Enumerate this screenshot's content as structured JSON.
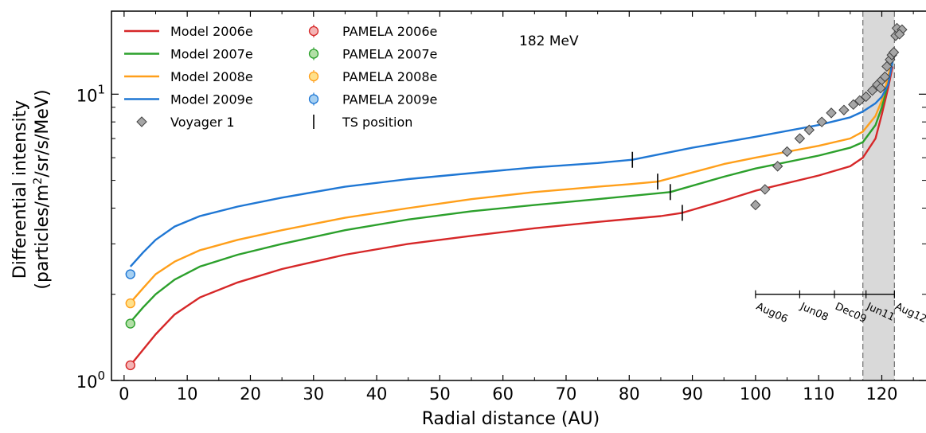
{
  "chart_data": {
    "type": "line",
    "xlabel": "Radial distance (AU)",
    "ylabel_line1": "Differential intensity",
    "ylabel_line2_prefix": "(particles/m",
    "ylabel_line2_sup": "2",
    "ylabel_line2_suffix": "/sr/s/MeV)",
    "annotation": "182 MeV",
    "xlim": [
      -2,
      127
    ],
    "ylim": [
      1.0,
      19.5
    ],
    "yscale": "log",
    "x_ticks": [
      0,
      10,
      20,
      30,
      40,
      50,
      60,
      70,
      80,
      90,
      100,
      110,
      120
    ],
    "x_tick_labels": [
      "0",
      "10",
      "20",
      "30",
      "40",
      "50",
      "60",
      "70",
      "80",
      "90",
      "100",
      "110",
      "120"
    ],
    "y_major_ticks": [
      1,
      10
    ],
    "y_tick_labels": [
      {
        "base": "10",
        "exp": "0"
      },
      {
        "base": "10",
        "exp": "1"
      }
    ],
    "shaded_region": [
      117,
      122
    ],
    "series": [
      {
        "name": "Model 2006e",
        "color": "#d62728",
        "x": [
          1,
          3,
          5,
          8,
          12,
          18,
          25,
          35,
          45,
          55,
          65,
          75,
          85,
          88.4,
          95,
          100,
          110,
          115,
          117,
          119,
          120,
          121,
          121.7
        ],
        "y": [
          1.13,
          1.28,
          1.45,
          1.7,
          1.95,
          2.2,
          2.45,
          2.75,
          3.0,
          3.2,
          3.4,
          3.58,
          3.75,
          3.85,
          4.25,
          4.6,
          5.2,
          5.6,
          6.0,
          7.0,
          8.5,
          10.5,
          12.5
        ]
      },
      {
        "name": "Model 2007e",
        "color": "#2ca02c",
        "x": [
          1,
          3,
          5,
          8,
          12,
          18,
          25,
          35,
          45,
          55,
          65,
          75,
          82,
          86.5,
          95,
          100,
          110,
          115,
          117,
          119,
          120,
          121,
          121.7
        ],
        "y": [
          1.6,
          1.8,
          2.0,
          2.25,
          2.5,
          2.75,
          3.0,
          3.35,
          3.65,
          3.9,
          4.1,
          4.3,
          4.45,
          4.55,
          5.15,
          5.5,
          6.1,
          6.5,
          6.8,
          7.8,
          9.0,
          11.0,
          13.0
        ]
      },
      {
        "name": "Model 2008e",
        "color": "#ff9f1a",
        "x": [
          1,
          3,
          5,
          8,
          12,
          18,
          25,
          35,
          45,
          55,
          65,
          75,
          80,
          84.5,
          95,
          100,
          110,
          115,
          117,
          119,
          120,
          121,
          121.7
        ],
        "y": [
          1.87,
          2.1,
          2.35,
          2.6,
          2.85,
          3.1,
          3.35,
          3.7,
          4.0,
          4.3,
          4.55,
          4.75,
          4.85,
          4.95,
          5.7,
          6.0,
          6.6,
          7.0,
          7.4,
          8.4,
          9.5,
          11.5,
          13.5
        ]
      },
      {
        "name": "Model 2009e",
        "color": "#1f77d4",
        "x": [
          1,
          3,
          5,
          8,
          12,
          18,
          25,
          35,
          45,
          55,
          65,
          75,
          80.5,
          90,
          100,
          110,
          115,
          117,
          119,
          120,
          121,
          121.7
        ],
        "y": [
          2.5,
          2.8,
          3.1,
          3.45,
          3.75,
          4.05,
          4.35,
          4.75,
          5.05,
          5.3,
          5.55,
          5.75,
          5.9,
          6.5,
          7.1,
          7.8,
          8.3,
          8.7,
          9.3,
          9.8,
          10.8,
          13.0
        ]
      }
    ],
    "pamela_points": [
      {
        "name": "PAMELA 2006e",
        "x": 1,
        "y": 1.13,
        "face": "#f4b4b4",
        "edge": "#d62728"
      },
      {
        "name": "PAMELA 2007e",
        "x": 1,
        "y": 1.58,
        "face": "#b2dfa6",
        "edge": "#2ca02c"
      },
      {
        "name": "PAMELA 2008e",
        "x": 1,
        "y": 1.86,
        "face": "#ffe08a",
        "edge": "#ff9f1a"
      },
      {
        "name": "PAMELA 2009e",
        "x": 1,
        "y": 2.35,
        "face": "#a6d0f2",
        "edge": "#1f77d4"
      }
    ],
    "voyager_name": "Voyager 1",
    "voyager_points": [
      {
        "x": 100,
        "y": 4.1
      },
      {
        "x": 101.5,
        "y": 4.65
      },
      {
        "x": 103.5,
        "y": 5.6
      },
      {
        "x": 105,
        "y": 6.3
      },
      {
        "x": 107,
        "y": 7.0
      },
      {
        "x": 108.5,
        "y": 7.5
      },
      {
        "x": 110.5,
        "y": 8.0
      },
      {
        "x": 112,
        "y": 8.6
      },
      {
        "x": 114,
        "y": 8.8
      },
      {
        "x": 115.5,
        "y": 9.2
      },
      {
        "x": 116.5,
        "y": 9.5
      },
      {
        "x": 117.5,
        "y": 9.8
      },
      {
        "x": 118.5,
        "y": 10.3
      },
      {
        "x": 119.3,
        "y": 10.8
      },
      {
        "x": 120,
        "y": 11.2
      },
      {
        "x": 119.8,
        "y": 10.5
      },
      {
        "x": 120.5,
        "y": 11.5
      },
      {
        "x": 120.8,
        "y": 12.5
      },
      {
        "x": 121.3,
        "y": 13.2
      },
      {
        "x": 121.6,
        "y": 13.7
      },
      {
        "x": 121.9,
        "y": 14.0
      },
      {
        "x": 122.2,
        "y": 16.0
      },
      {
        "x": 122.4,
        "y": 17.0
      },
      {
        "x": 123.2,
        "y": 16.8
      },
      {
        "x": 122.8,
        "y": 16.2
      }
    ],
    "ts_name": "TS position",
    "ts_positions": [
      {
        "x": 88.4,
        "y": 3.85
      },
      {
        "x": 86.5,
        "y": 4.55
      },
      {
        "x": 84.5,
        "y": 4.95
      },
      {
        "x": 80.5,
        "y": 5.9
      }
    ],
    "timeline": {
      "y": 2.0,
      "x_start": 100,
      "x_end": 122,
      "ticks": [
        {
          "x": 100,
          "label": "Aug06"
        },
        {
          "x": 107,
          "label": "Jun08"
        },
        {
          "x": 112.5,
          "label": "Dec09"
        },
        {
          "x": 117.5,
          "label": "Jun11"
        },
        {
          "x": 122,
          "label": "Aug12"
        }
      ]
    },
    "legend": {
      "placement": "top-left",
      "col1": [
        {
          "label": "Model 2006e",
          "kind": "line",
          "color": "#d62728"
        },
        {
          "label": "Model 2007e",
          "kind": "line",
          "color": "#2ca02c"
        },
        {
          "label": "Model 2008e",
          "kind": "line",
          "color": "#ff9f1a"
        },
        {
          "label": "Model 2009e",
          "kind": "line",
          "color": "#1f77d4"
        },
        {
          "label": "Voyager 1",
          "kind": "diamond",
          "color": "#9a9a9a"
        }
      ],
      "col2": [
        {
          "label": "PAMELA 2006e",
          "kind": "circle",
          "color": "#f4b4b4",
          "edge": "#d62728"
        },
        {
          "label": "PAMELA 2007e",
          "kind": "circle",
          "color": "#b2dfa6",
          "edge": "#2ca02c"
        },
        {
          "label": "PAMELA 2008e",
          "kind": "circle",
          "color": "#ffe08a",
          "edge": "#ff9f1a"
        },
        {
          "label": "PAMELA 2009e",
          "kind": "circle",
          "color": "#a6d0f2",
          "edge": "#1f77d4"
        },
        {
          "label": "TS position",
          "kind": "vbar",
          "color": "#000000"
        }
      ]
    }
  }
}
